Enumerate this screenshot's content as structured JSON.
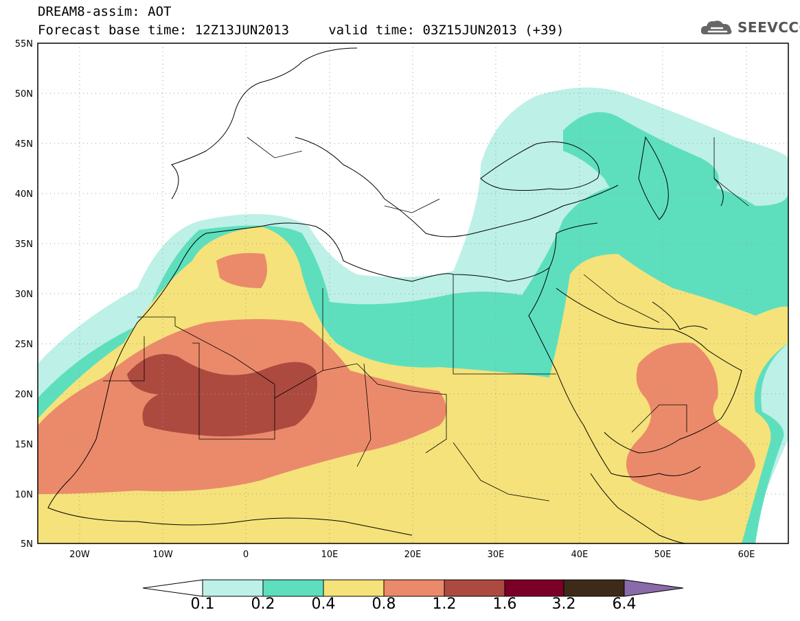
{
  "header": {
    "line1": "DREAM8-assim: AOT",
    "line2": "Forecast base time: 12Z13JUN2013     valid time: 03Z15JUN2013 (+39)"
  },
  "logo": {
    "text": "SEEVCCC",
    "icon": "cloud-icon"
  },
  "map": {
    "lon_range": [
      -25,
      65
    ],
    "lat_range": [
      5,
      55
    ],
    "lat_labels": [
      "55N",
      "50N",
      "45N",
      "40N",
      "35N",
      "30N",
      "25N",
      "20N",
      "15N",
      "10N",
      "5N"
    ],
    "lon_labels": [
      "20W",
      "10W",
      "0",
      "10E",
      "20E",
      "30E",
      "40E",
      "50E",
      "60E"
    ],
    "grid": true
  },
  "colorbar": {
    "labels": [
      "0.1",
      "0.2",
      "0.4",
      "0.8",
      "1.2",
      "1.6",
      "3.2",
      "6.4"
    ],
    "colors": [
      "#ffffff",
      "#bdf0e6",
      "#5ddfbe",
      "#f5e27a",
      "#eb8a6a",
      "#ac4a40",
      "#7a0027",
      "#3d2a18",
      "#8a6aa8"
    ]
  }
}
